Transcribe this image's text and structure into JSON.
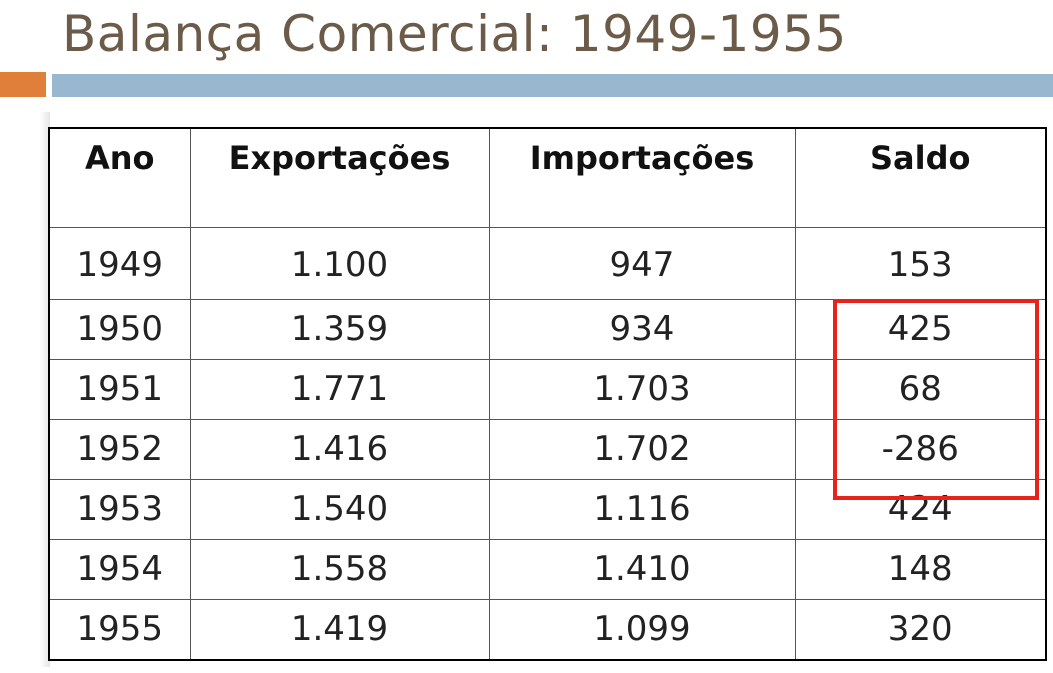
{
  "title": "Balança Comercial: 1949-1955",
  "table": {
    "headers": [
      "Ano",
      "Exportações",
      "Importações",
      "Saldo"
    ],
    "rows": [
      [
        "1949",
        "1.100",
        "947",
        "153"
      ],
      [
        "1950",
        "1.359",
        "934",
        "425"
      ],
      [
        "1951",
        "1.771",
        "1.703",
        "68"
      ],
      [
        "1952",
        "1.416",
        "1.702",
        "-286"
      ],
      [
        "1953",
        "1.540",
        "1.116",
        "424"
      ],
      [
        "1954",
        "1.558",
        "1.410",
        "148"
      ],
      [
        "1955",
        "1.419",
        "1.099",
        "320"
      ]
    ]
  },
  "colors": {
    "title_text": "#6b5b48",
    "accent_orange": "#e07f3a",
    "accent_blue": "#99b8d0",
    "highlight_border": "#e8231b"
  }
}
